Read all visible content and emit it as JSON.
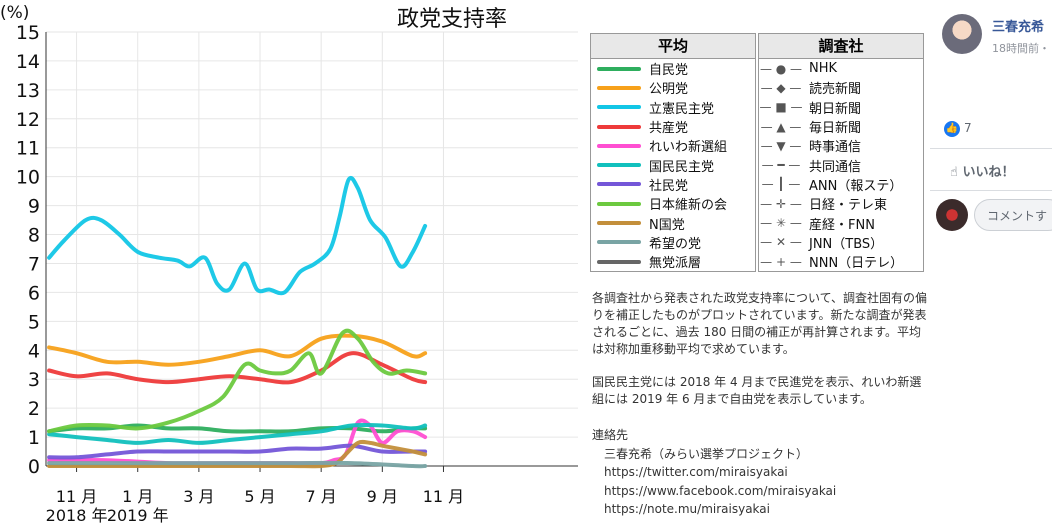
{
  "chart_data": {
    "type": "line",
    "title": "政党支持率",
    "ylabel": "(%)",
    "ylim": [
      0,
      15
    ],
    "yticks": [
      0,
      1,
      2,
      3,
      4,
      5,
      6,
      7,
      8,
      9,
      10,
      11,
      12,
      13,
      14,
      15
    ],
    "x_start_month": 10.0,
    "x_end_month": 27.4,
    "xticks": [
      {
        "m": 11,
        "label": "11 月",
        "year": "2018 年"
      },
      {
        "m": 13,
        "label": "1 月",
        "year": "2019 年"
      },
      {
        "m": 15,
        "label": "3 月",
        "year": ""
      },
      {
        "m": 17,
        "label": "5 月",
        "year": ""
      },
      {
        "m": 19,
        "label": "7 月",
        "year": ""
      },
      {
        "m": 21,
        "label": "9 月",
        "year": ""
      },
      {
        "m": 23,
        "label": "11 月",
        "year": ""
      }
    ],
    "series": [
      {
        "name": "自民党",
        "color": "#2eae5e",
        "x": [
          10.1,
          11,
          12,
          13,
          14,
          15,
          16,
          17,
          18,
          19,
          20,
          21,
          22,
          22.4
        ],
        "y": [
          1.2,
          1.3,
          1.3,
          1.4,
          1.3,
          1.3,
          1.2,
          1.2,
          1.2,
          1.3,
          1.3,
          1.2,
          1.3,
          1.3
        ]
      },
      {
        "name": "公明党",
        "color": "#f7a11a",
        "x": [
          10.1,
          11,
          12,
          13,
          14,
          15,
          16,
          17,
          18,
          19,
          20,
          21,
          22,
          22.4
        ],
        "y": [
          4.1,
          3.9,
          3.6,
          3.6,
          3.5,
          3.6,
          3.8,
          4.0,
          3.8,
          4.4,
          4.5,
          4.3,
          3.8,
          3.9
        ]
      },
      {
        "name": "立憲民主党",
        "color": "#12c6e6",
        "x": [
          10.1,
          10.6,
          11.3,
          11.8,
          12.4,
          13,
          13.7,
          14.3,
          14.7,
          15.2,
          15.6,
          16,
          16.5,
          16.9,
          17.3,
          17.8,
          18.3,
          18.8,
          19.3,
          19.6,
          19.9,
          20.2,
          20.6,
          21.1,
          21.6,
          22,
          22.4
        ],
        "y": [
          7.2,
          7.8,
          8.5,
          8.5,
          8.0,
          7.4,
          7.2,
          7.1,
          6.9,
          7.2,
          6.3,
          6.1,
          7.0,
          6.1,
          6.1,
          6.0,
          6.7,
          7.0,
          7.5,
          8.6,
          9.9,
          9.6,
          8.5,
          7.9,
          6.9,
          7.4,
          8.3
        ]
      },
      {
        "name": "共産党",
        "color": "#ee3a3a",
        "x": [
          10.1,
          11,
          12,
          13,
          14,
          15,
          16,
          17,
          18,
          19,
          20,
          21,
          22,
          22.4
        ],
        "y": [
          3.3,
          3.1,
          3.2,
          3.0,
          2.9,
          3.0,
          3.1,
          3.0,
          2.9,
          3.3,
          3.9,
          3.5,
          3.0,
          2.9
        ]
      },
      {
        "name": "れいわ新選組",
        "color": "#ff4fd2",
        "x": [
          10.1,
          12,
          14,
          16,
          17,
          18,
          19,
          19.4,
          19.8,
          20.2,
          20.6,
          21,
          21.5,
          22,
          22.4
        ],
        "y": [
          0.2,
          0.2,
          0.1,
          0.1,
          0.1,
          0.1,
          0.1,
          0.2,
          0.4,
          1.5,
          1.4,
          0.8,
          1.2,
          1.2,
          1.0
        ]
      },
      {
        "name": "国民民主党",
        "color": "#11c0bd",
        "x": [
          10.1,
          11,
          12,
          13,
          14,
          15,
          16,
          17,
          18,
          19,
          20,
          21,
          22,
          22.4
        ],
        "y": [
          1.1,
          1.0,
          0.9,
          0.8,
          0.9,
          0.8,
          0.9,
          1.0,
          1.1,
          1.2,
          1.4,
          1.4,
          1.3,
          1.4
        ]
      },
      {
        "name": "社民党",
        "color": "#7456d8",
        "x": [
          10.1,
          11,
          12,
          13,
          14,
          15,
          16,
          17,
          18,
          19,
          20,
          21,
          22,
          22.4
        ],
        "y": [
          0.3,
          0.3,
          0.4,
          0.5,
          0.5,
          0.5,
          0.5,
          0.5,
          0.6,
          0.6,
          0.7,
          0.5,
          0.5,
          0.5
        ]
      },
      {
        "name": "日本維新の会",
        "color": "#6cc93f",
        "x": [
          10.1,
          11,
          12,
          13,
          14,
          15,
          15.8,
          16.5,
          17,
          17.5,
          18,
          18.6,
          19,
          19.7,
          20.2,
          20.7,
          21.2,
          21.8,
          22.4
        ],
        "y": [
          1.2,
          1.4,
          1.4,
          1.3,
          1.5,
          1.9,
          2.4,
          3.5,
          3.3,
          3.2,
          3.3,
          3.9,
          3.2,
          4.6,
          4.4,
          3.6,
          3.2,
          3.3,
          3.2
        ]
      },
      {
        "name": "N国党",
        "color": "#c38f3b",
        "x": [
          10.1,
          12,
          14,
          16,
          18,
          19,
          19.5,
          19.8,
          20.2,
          20.6,
          21,
          21.5,
          22,
          22.4
        ],
        "y": [
          0,
          0,
          0,
          0,
          0,
          0,
          0.1,
          0.4,
          0.8,
          0.8,
          0.7,
          0.6,
          0.5,
          0.4
        ]
      },
      {
        "name": "希望の党",
        "color": "#79a4a4",
        "x": [
          10.1,
          12,
          14,
          16,
          18,
          20,
          22,
          22.4
        ],
        "y": [
          0.1,
          0.1,
          0.1,
          0.1,
          0.1,
          0.1,
          0.0,
          0.0
        ]
      },
      {
        "name": "無党派層",
        "color": "#666666",
        "x": [],
        "y": []
      }
    ]
  },
  "legend": {
    "avg_title": "平均",
    "parties": [
      {
        "name": "自民党",
        "color": "#2eae5e"
      },
      {
        "name": "公明党",
        "color": "#f7a11a"
      },
      {
        "name": "立憲民主党",
        "color": "#12c6e6"
      },
      {
        "name": "共産党",
        "color": "#ee3a3a"
      },
      {
        "name": "れいわ新選組",
        "color": "#ff4fd2"
      },
      {
        "name": "国民民主党",
        "color": "#11c0bd"
      },
      {
        "name": "社民党",
        "color": "#7456d8"
      },
      {
        "name": "日本維新の会",
        "color": "#6cc93f"
      },
      {
        "name": "N国党",
        "color": "#c38f3b"
      },
      {
        "name": "希望の党",
        "color": "#79a4a4"
      },
      {
        "name": "無党派層",
        "color": "#666666"
      }
    ],
    "pollster_title": "調査社",
    "pollsters": [
      {
        "marker": "●",
        "name": "NHK"
      },
      {
        "marker": "◆",
        "name": "読売新聞"
      },
      {
        "marker": "■",
        "name": "朝日新聞"
      },
      {
        "marker": "▲",
        "name": "毎日新聞"
      },
      {
        "marker": "▼",
        "name": "時事通信"
      },
      {
        "marker": "━",
        "name": "共同通信"
      },
      {
        "marker": "┃",
        "name": "ANN（報ステ）"
      },
      {
        "marker": "✛",
        "name": "日経・テレ東"
      },
      {
        "marker": "✳",
        "name": "産経・FNN"
      },
      {
        "marker": "✕",
        "name": "JNN（TBS）"
      },
      {
        "marker": "+",
        "name": "NNN（日テレ）"
      }
    ]
  },
  "notes": {
    "p1": "各調査社から発表された政党支持率について、調査社固有の偏りを補正したものがプロットされています。新たな調査が発表されるごとに、過去 180 日間の補正が再計算されます。平均は対称加重移動平均で求めています。",
    "p2": "国民民主党には 2018 年 4 月まで民進党を表示、れいわ新選組には 2019 年 6 月まで自由党を表示しています。",
    "contact_title": "連絡先",
    "contact_name": "三春充希（みらい選挙プロジェクト）",
    "link1": "https://twitter.com/miraisyakai",
    "link2": "https://www.facebook.com/miraisyakai",
    "link3": "https://note.mu/miraisyakai"
  },
  "fb": {
    "author": "三春充希",
    "time": "18時間前・",
    "like_icon": "👍",
    "like_count": "7",
    "like_label": "いいね！",
    "comment_placeholder": "コメントす"
  }
}
